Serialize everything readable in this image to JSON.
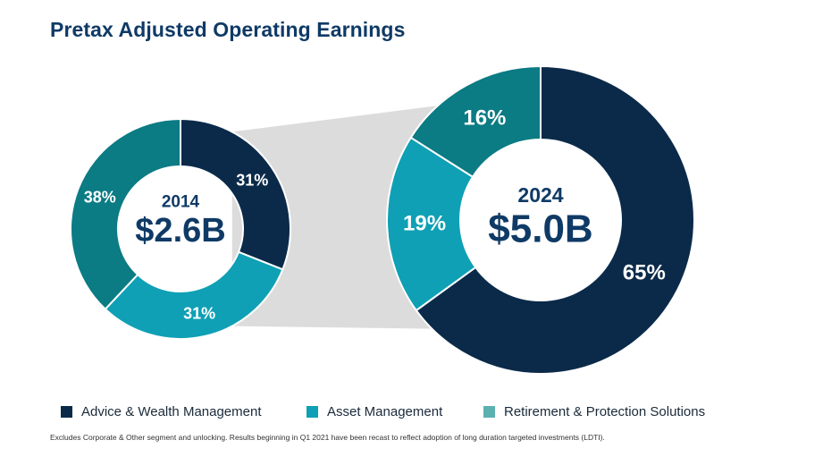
{
  "title": "Pretax Adjusted Operating Earnings",
  "colors": {
    "advice": "#0b2a4a",
    "asset": "#0fa0b5",
    "retirement": "#0b7b84",
    "connector": "#dcdcdc",
    "title": "#0f3a66"
  },
  "legend": [
    {
      "label": "Advice & Wealth Management",
      "color": "#0b2a4a"
    },
    {
      "label": "Asset Management",
      "color": "#0fa0b5"
    },
    {
      "label": "Retirement & Protection Solutions",
      "color": "#5cb0b0"
    }
  ],
  "chart_data": [
    {
      "type": "pie",
      "variant": "donut",
      "year": "2014",
      "total": "$2.6B",
      "categories": [
        "Advice & Wealth Management",
        "Asset Management",
        "Retirement & Protection Solutions"
      ],
      "values": [
        31,
        31,
        38
      ],
      "labels": [
        "31%",
        "31%",
        "38%"
      ]
    },
    {
      "type": "pie",
      "variant": "donut",
      "year": "2024",
      "total": "$5.0B",
      "categories": [
        "Advice & Wealth Management",
        "Asset Management",
        "Retirement & Protection Solutions"
      ],
      "values": [
        65,
        19,
        16
      ],
      "labels": [
        "65%",
        "19%",
        "16%"
      ]
    }
  ],
  "footnote": "Excludes Corporate & Other segment and unlocking. Results beginning in Q1 2021 have been recast to reflect adoption of long duration targeted investments (LDTI)."
}
